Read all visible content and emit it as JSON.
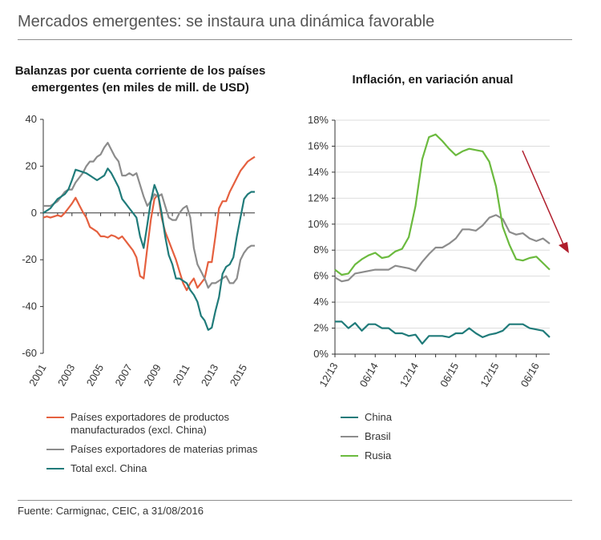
{
  "header": {
    "title": "Mercados emergentes: se instaura una dinámica favorable"
  },
  "source": "Fuente: Carmignac, CEIC, a 31/08/2016",
  "colors": {
    "orange": "#e5603f",
    "gray": "#8c8c8c",
    "teal": "#207b7a",
    "green": "#6bba3e",
    "red": "#b01e2c",
    "axis": "#333333",
    "grid": "#dddddd"
  },
  "legend_left": [
    {
      "label_lines": [
        "Países exportadores de productos",
        "manufacturados (excl. China)"
      ],
      "color": "#e5603f"
    },
    {
      "label_lines": [
        "Países exportadores de materias primas"
      ],
      "color": "#8c8c8c"
    },
    {
      "label_lines": [
        "Total excl. China"
      ],
      "color": "#207b7a"
    }
  ],
  "legend_right": [
    {
      "label_lines": [
        "China"
      ],
      "color": "#207b7a"
    },
    {
      "label_lines": [
        "Brasil"
      ],
      "color": "#8c8c8c"
    },
    {
      "label_lines": [
        "Rusia"
      ],
      "color": "#6bba3e"
    }
  ],
  "chart_data": [
    {
      "type": "line",
      "title": "Balanzas por cuenta corriente de los países emergentes (en miles de mill. de USD)",
      "title_lines": [
        "Balanzas por cuenta corriente de los países",
        "emergentes (en miles de mill. de USD)"
      ],
      "ylim": [
        -60,
        40
      ],
      "yticks": [
        40,
        20,
        0,
        -20,
        -40,
        -60
      ],
      "xlim": [
        2001,
        2015.75
      ],
      "xticks": [
        2001,
        2003,
        2005,
        2007,
        2009,
        2011,
        2013,
        2015
      ],
      "xlabel": "",
      "ylabel": "",
      "series": [
        {
          "name": "Países exportadores de productos manufacturados (excl. China)",
          "color": "#e5603f",
          "x": [
            2001.0,
            2001.25,
            2001.5,
            2001.75,
            2002.0,
            2002.25,
            2002.5,
            2002.75,
            2003.0,
            2003.25,
            2003.5,
            2003.75,
            2004.0,
            2004.25,
            2004.5,
            2004.75,
            2005.0,
            2005.25,
            2005.5,
            2005.75,
            2006.0,
            2006.25,
            2006.5,
            2006.75,
            2007.0,
            2007.25,
            2007.5,
            2007.75,
            2008.0,
            2008.25,
            2008.5,
            2008.75,
            2009.0,
            2009.25,
            2009.5,
            2009.75,
            2010.0,
            2010.25,
            2010.5,
            2010.75,
            2011.0,
            2011.25,
            2011.5,
            2011.75,
            2012.0,
            2012.25,
            2012.5,
            2012.75,
            2013.0,
            2013.25,
            2013.5,
            2013.75,
            2014.0,
            2014.25,
            2014.5,
            2014.75,
            2015.0,
            2015.25,
            2015.5,
            2015.75
          ],
          "values": [
            -2,
            -1.5,
            -2,
            -1.5,
            -1,
            -1.5,
            0,
            2,
            4,
            6.5,
            3.5,
            0.5,
            -2,
            -6,
            -7,
            -8,
            -10,
            -10,
            -10.5,
            -9.5,
            -10,
            -11,
            -10,
            -12,
            -14,
            -16,
            -19,
            -27,
            -28,
            -15,
            -3,
            6,
            8,
            -2,
            -8,
            -12,
            -16,
            -20,
            -25,
            -30,
            -33,
            -30,
            -28,
            -32,
            -30,
            -28,
            -21,
            -21,
            -10,
            2,
            5,
            5,
            9,
            12,
            15,
            18,
            20,
            22,
            23,
            24
          ]
        },
        {
          "name": "Países exportadores de materias primas",
          "color": "#8c8c8c",
          "x": [
            2001.0,
            2001.25,
            2001.5,
            2001.75,
            2002.0,
            2002.25,
            2002.5,
            2002.75,
            2003.0,
            2003.25,
            2003.5,
            2003.75,
            2004.0,
            2004.25,
            2004.5,
            2004.75,
            2005.0,
            2005.25,
            2005.5,
            2005.75,
            2006.0,
            2006.25,
            2006.5,
            2006.75,
            2007.0,
            2007.25,
            2007.5,
            2007.75,
            2008.0,
            2008.25,
            2008.5,
            2008.75,
            2009.0,
            2009.25,
            2009.5,
            2009.75,
            2010.0,
            2010.25,
            2010.5,
            2010.75,
            2011.0,
            2011.25,
            2011.5,
            2011.75,
            2012.0,
            2012.25,
            2012.5,
            2012.75,
            2013.0,
            2013.25,
            2013.5,
            2013.75,
            2014.0,
            2014.25,
            2014.5,
            2014.75,
            2015.0,
            2015.25,
            2015.5,
            2015.75
          ],
          "values": [
            3,
            3,
            3,
            4,
            5,
            7,
            9,
            10,
            10,
            13,
            15,
            17,
            20,
            22,
            22,
            24,
            25,
            28,
            30,
            27,
            24,
            22,
            16,
            16,
            17,
            16,
            17,
            12,
            7,
            3,
            5,
            8,
            7,
            8,
            3,
            -2,
            -3,
            -3,
            0,
            2,
            3,
            -2,
            -15,
            -22,
            -25,
            -28,
            -32,
            -30,
            -30,
            -29,
            -28,
            -27,
            -30,
            -30,
            -28,
            -20,
            -17,
            -15,
            -14,
            -14
          ]
        },
        {
          "name": "Total excl. China",
          "color": "#207b7a",
          "x": [
            2001.0,
            2001.25,
            2001.5,
            2001.75,
            2002.0,
            2002.25,
            2002.5,
            2002.75,
            2003.0,
            2003.25,
            2003.5,
            2003.75,
            2004.0,
            2004.25,
            2004.5,
            2004.75,
            2005.0,
            2005.25,
            2005.5,
            2005.75,
            2006.0,
            2006.25,
            2006.5,
            2006.75,
            2007.0,
            2007.25,
            2007.5,
            2007.75,
            2008.0,
            2008.25,
            2008.5,
            2008.75,
            2009.0,
            2009.25,
            2009.5,
            2009.75,
            2010.0,
            2010.25,
            2010.5,
            2010.75,
            2011.0,
            2011.25,
            2011.5,
            2011.75,
            2012.0,
            2012.25,
            2012.5,
            2012.75,
            2013.0,
            2013.25,
            2013.5,
            2013.75,
            2014.0,
            2014.25,
            2014.5,
            2014.75,
            2015.0,
            2015.25,
            2015.5,
            2015.75
          ],
          "values": [
            0,
            1,
            2,
            4,
            6,
            7,
            8,
            10,
            14,
            18.5,
            18,
            17.5,
            17,
            16,
            15,
            14,
            15,
            16,
            19,
            17,
            14,
            11,
            6,
            4,
            2,
            0,
            -2,
            -10,
            -15,
            -5,
            5,
            12,
            8,
            0,
            -10,
            -18,
            -22,
            -28,
            -28,
            -29,
            -30,
            -33,
            -35,
            -38,
            -44,
            -46,
            -50,
            -49,
            -42,
            -36,
            -26,
            -23,
            -22,
            -19,
            -10,
            -2,
            6,
            8,
            9,
            9
          ]
        }
      ]
    },
    {
      "type": "line",
      "title": "Inflación, en variación anual",
      "ylim": [
        0,
        18
      ],
      "yticks": [
        18,
        16,
        14,
        12,
        10,
        8,
        6,
        4,
        2,
        0
      ],
      "ytick_labels": [
        "18%",
        "16%",
        "14%",
        "12%",
        "10%",
        "8%",
        "6%",
        "4%",
        "2%",
        "0%"
      ],
      "xlim": [
        0,
        32
      ],
      "xticks": [
        0,
        6,
        12,
        18,
        24,
        30
      ],
      "xtick_labels": [
        "12/13",
        "06/14",
        "12/14",
        "06/15",
        "12/15",
        "06/16"
      ],
      "xlabel": "",
      "ylabel": "",
      "series": [
        {
          "name": "China",
          "color": "#207b7a",
          "x": [
            0,
            1,
            2,
            3,
            4,
            5,
            6,
            7,
            8,
            9,
            10,
            11,
            12,
            13,
            14,
            15,
            16,
            17,
            18,
            19,
            20,
            21,
            22,
            23,
            24,
            25,
            26,
            27,
            28,
            29,
            30,
            31,
            32
          ],
          "values": [
            2.5,
            2.5,
            2.0,
            2.4,
            1.8,
            2.3,
            2.3,
            2.0,
            2.0,
            1.6,
            1.6,
            1.4,
            1.5,
            0.8,
            1.4,
            1.4,
            1.4,
            1.3,
            1.6,
            1.6,
            2.0,
            1.6,
            1.3,
            1.5,
            1.6,
            1.8,
            2.3,
            2.3,
            2.3,
            2.0,
            1.9,
            1.8,
            1.3
          ]
        },
        {
          "name": "Brasil",
          "color": "#8c8c8c",
          "x": [
            0,
            1,
            2,
            3,
            4,
            5,
            6,
            7,
            8,
            9,
            10,
            11,
            12,
            13,
            14,
            15,
            16,
            17,
            18,
            19,
            20,
            21,
            22,
            23,
            24,
            25,
            26,
            27,
            28,
            29,
            30,
            31,
            32
          ],
          "values": [
            5.9,
            5.6,
            5.7,
            6.2,
            6.3,
            6.4,
            6.5,
            6.5,
            6.5,
            6.8,
            6.7,
            6.6,
            6.4,
            7.1,
            7.7,
            8.2,
            8.2,
            8.5,
            8.9,
            9.6,
            9.6,
            9.5,
            9.9,
            10.5,
            10.7,
            10.4,
            9.4,
            9.2,
            9.3,
            8.9,
            8.7,
            8.9,
            8.5
          ]
        },
        {
          "name": "Rusia",
          "color": "#6bba3e",
          "x": [
            0,
            1,
            2,
            3,
            4,
            5,
            6,
            7,
            8,
            9,
            10,
            11,
            12,
            13,
            14,
            15,
            16,
            17,
            18,
            19,
            20,
            21,
            22,
            23,
            24,
            25,
            26,
            27,
            28,
            29,
            30,
            31,
            32
          ],
          "values": [
            6.5,
            6.1,
            6.2,
            6.9,
            7.3,
            7.6,
            7.8,
            7.4,
            7.5,
            7.9,
            8.1,
            9.0,
            11.4,
            15.0,
            16.7,
            16.9,
            16.4,
            15.8,
            15.3,
            15.6,
            15.8,
            15.7,
            15.6,
            14.8,
            12.9,
            9.8,
            8.4,
            7.3,
            7.2,
            7.4,
            7.5,
            7.0,
            6.5
          ]
        }
      ]
    }
  ]
}
